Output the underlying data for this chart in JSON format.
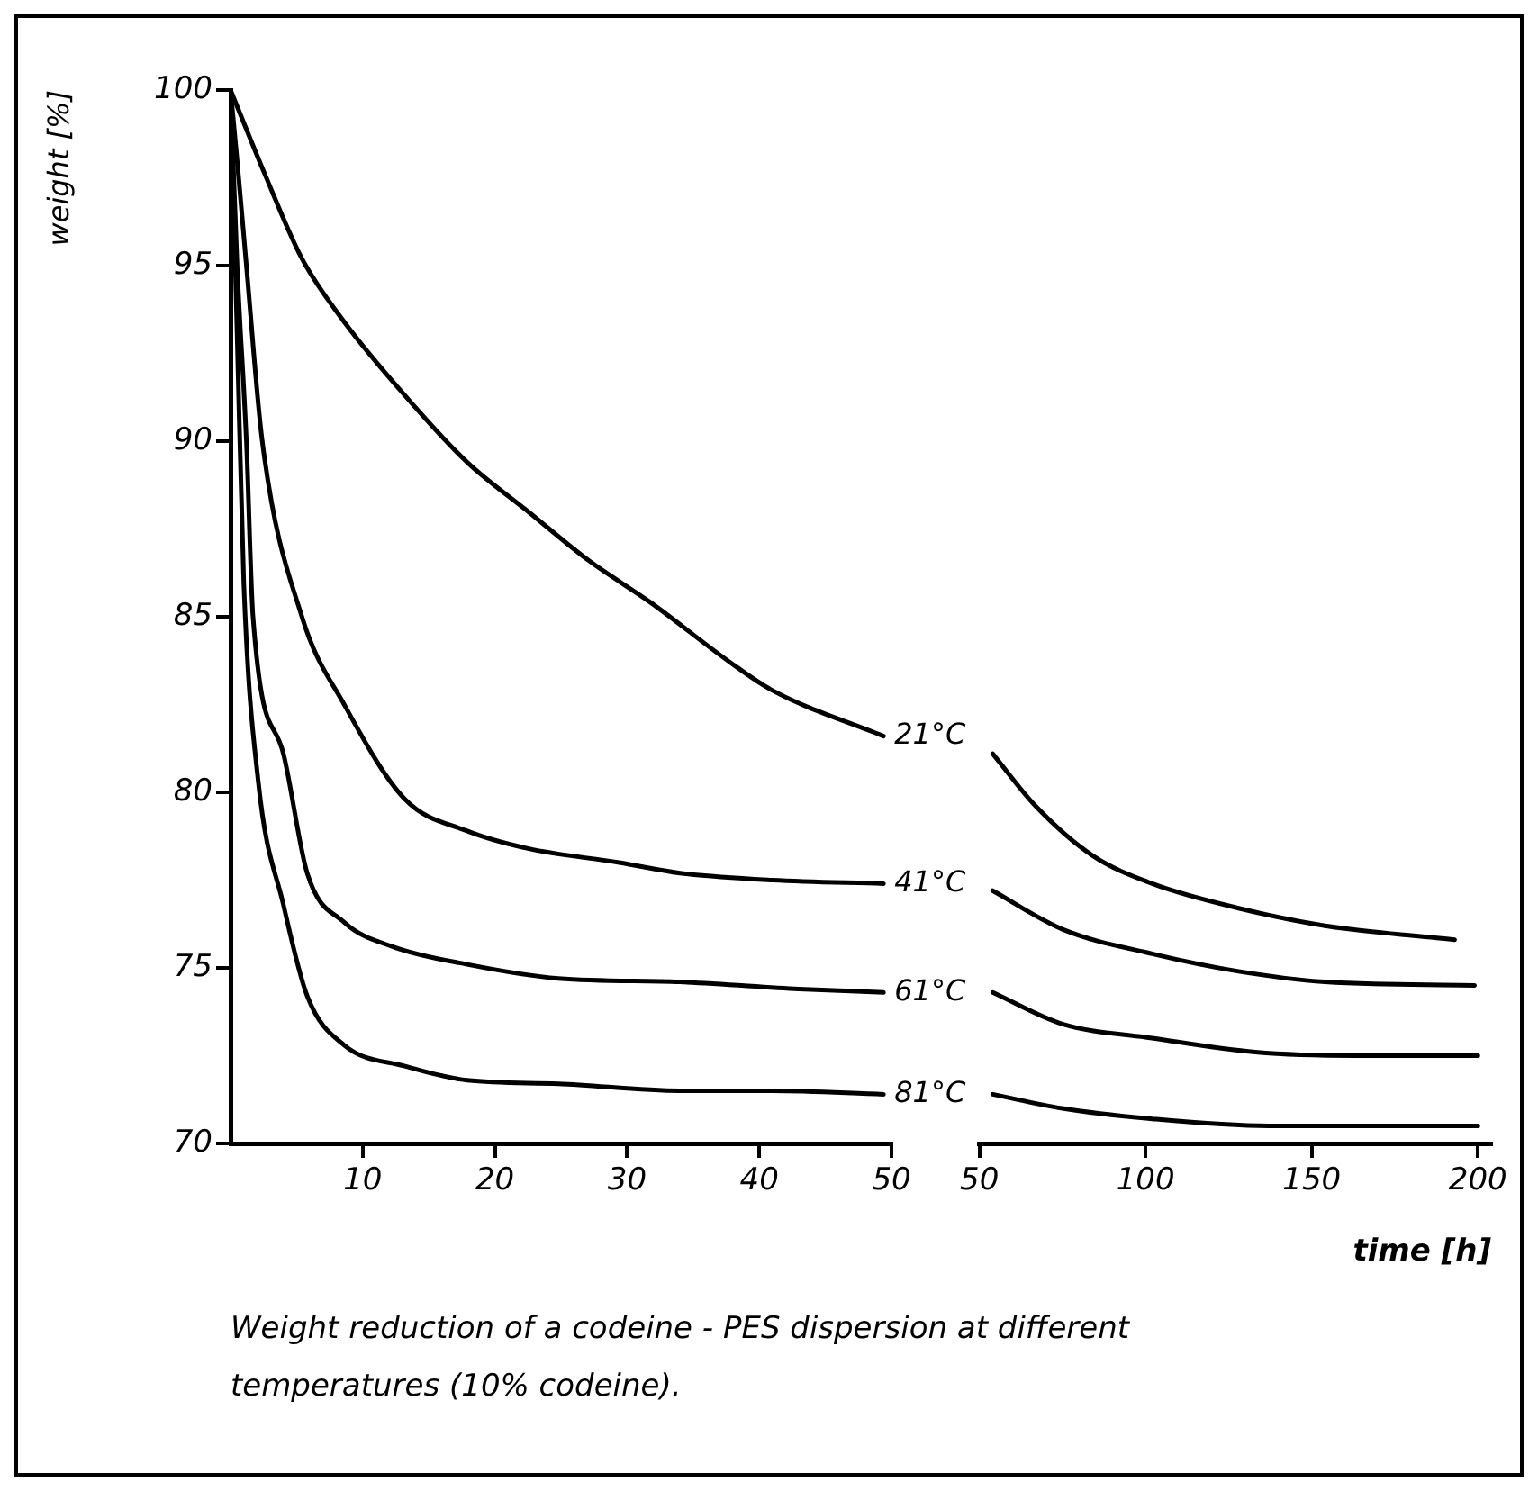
{
  "chart_data": [
    {
      "type": "line",
      "ylabel": "weight [%]",
      "annotations": [
        "Weight reduction of a codeine - PES dispersion at different temperatures  (10% codeine)."
      ],
      "xlim": [
        0,
        50
      ],
      "xticks": [
        10,
        20,
        30,
        40,
        50
      ],
      "ylim": [
        70,
        100
      ],
      "yticks": [
        70,
        75,
        80,
        85,
        90,
        95,
        100
      ],
      "grid": false,
      "legend": false,
      "marker": "none",
      "line_style": "solid",
      "series": [
        {
          "name": "21°C",
          "color": "#000000",
          "x": [
            0,
            2.6,
            5.4,
            8.6,
            13.2,
            17.9,
            22.5,
            27.1,
            31.8,
            37.8,
            41,
            49.4
          ],
          "values": [
            100,
            97.6,
            95.2,
            93.4,
            91.3,
            89.4,
            88.0,
            86.6,
            85.4,
            83.7,
            82.9,
            81.6
          ]
        },
        {
          "name": "41°C",
          "color": "#000000",
          "x": [
            0,
            0.5,
            1.2,
            2.4,
            5.4,
            8.6,
            13.2,
            17.9,
            22.5,
            29.4,
            34,
            41,
            49.4
          ],
          "values": [
            100,
            98,
            95,
            90,
            85,
            82.5,
            79.8,
            78.9,
            78.4,
            78.0,
            77.7,
            77.5,
            77.4
          ]
        },
        {
          "name": "61°C",
          "color": "#000000",
          "x": [
            0,
            0.5,
            1.2,
            1.7,
            4,
            5.8,
            8.6,
            12.3,
            17.9,
            24.8,
            34,
            43,
            49.4
          ],
          "values": [
            100,
            95,
            90,
            85,
            81.1,
            77.7,
            76.3,
            75.6,
            75.1,
            74.7,
            74.6,
            74.4,
            74.3
          ]
        },
        {
          "name": "81°C",
          "color": "#000000",
          "x": [
            0,
            0.5,
            1,
            2.1,
            4,
            5.8,
            8.6,
            13.2,
            17.9,
            24.8,
            34,
            41,
            49.4
          ],
          "values": [
            100,
            93,
            86,
            80.3,
            76.8,
            74.2,
            72.8,
            72.2,
            71.8,
            71.7,
            71.5,
            71.5,
            71.4
          ]
        }
      ]
    },
    {
      "type": "line",
      "xlabel": "time [h]",
      "xlim": [
        50,
        204
      ],
      "xticks": [
        50,
        100,
        150,
        200
      ],
      "ylim": [
        70,
        100
      ],
      "tick_labels": "x",
      "grid": false,
      "legend": false,
      "marker": "none",
      "line_style": "solid",
      "series": [
        {
          "color": "#000000",
          "x": [
            54,
            67,
            84,
            102,
            128,
            154,
            193
          ],
          "values": [
            81.1,
            79.6,
            78.2,
            77.4,
            76.7,
            76.2,
            75.8
          ]
        },
        {
          "color": "#000000",
          "x": [
            54,
            75,
            102,
            128,
            154,
            199
          ],
          "values": [
            77.2,
            76.1,
            75.4,
            74.9,
            74.6,
            74.5
          ]
        },
        {
          "color": "#000000",
          "x": [
            54,
            75,
            102,
            133,
            163,
            200
          ],
          "values": [
            74.3,
            73.4,
            73.0,
            72.6,
            72.5,
            72.5
          ]
        },
        {
          "color": "#000000",
          "x": [
            54,
            75,
            102,
            137,
            163,
            200
          ],
          "values": [
            71.4,
            71.0,
            70.7,
            70.5,
            70.5,
            70.5
          ]
        }
      ]
    }
  ]
}
